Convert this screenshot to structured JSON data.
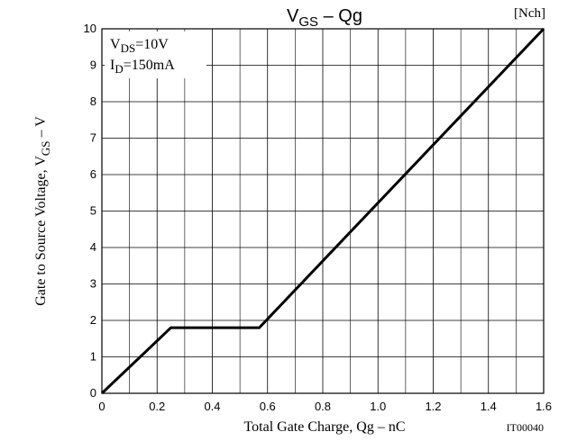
{
  "chart_data": {
    "type": "line",
    "title_main": "V",
    "title_sub": "GS",
    "title_rest": " – Qg",
    "channel_tag": "[Nch]",
    "xlabel": "Total Gate Charge, Qg  –  nC",
    "ylabel_main": "Gate to Source Voltage, V",
    "ylabel_sub": "GS",
    "ylabel_rest": "  –  V",
    "figure_code": "IT00040",
    "xlim": [
      0,
      1.6
    ],
    "ylim": [
      0,
      10
    ],
    "x_ticks": [
      0,
      0.2,
      0.4,
      0.6,
      0.8,
      1.0,
      1.2,
      1.4,
      1.6
    ],
    "x_tick_labels": [
      "0",
      "0.2",
      "0.4",
      "0.6",
      "0.8",
      "1.0",
      "1.2",
      "1.4",
      "1.6"
    ],
    "y_ticks": [
      0,
      1,
      2,
      3,
      4,
      5,
      6,
      7,
      8,
      9,
      10
    ],
    "y_tick_labels": [
      "0",
      "1",
      "2",
      "3",
      "4",
      "5",
      "6",
      "7",
      "8",
      "9",
      "10"
    ],
    "grid": true,
    "conditions": [
      {
        "main": "V",
        "sub": "DS",
        "rest": "=10V"
      },
      {
        "main": "I",
        "sub": "D",
        "rest": "=150mA"
      }
    ],
    "series": [
      {
        "x": [
          0,
          0.25,
          0.57,
          1.6
        ],
        "y": [
          0,
          1.8,
          1.8,
          10
        ]
      }
    ]
  }
}
